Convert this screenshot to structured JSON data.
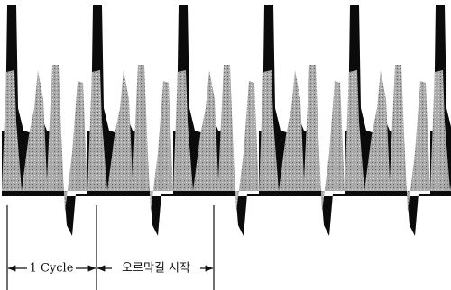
{
  "labels": {
    "cycle": "1 Cycle",
    "uphill_start": "오르막길 시작"
  }
}
